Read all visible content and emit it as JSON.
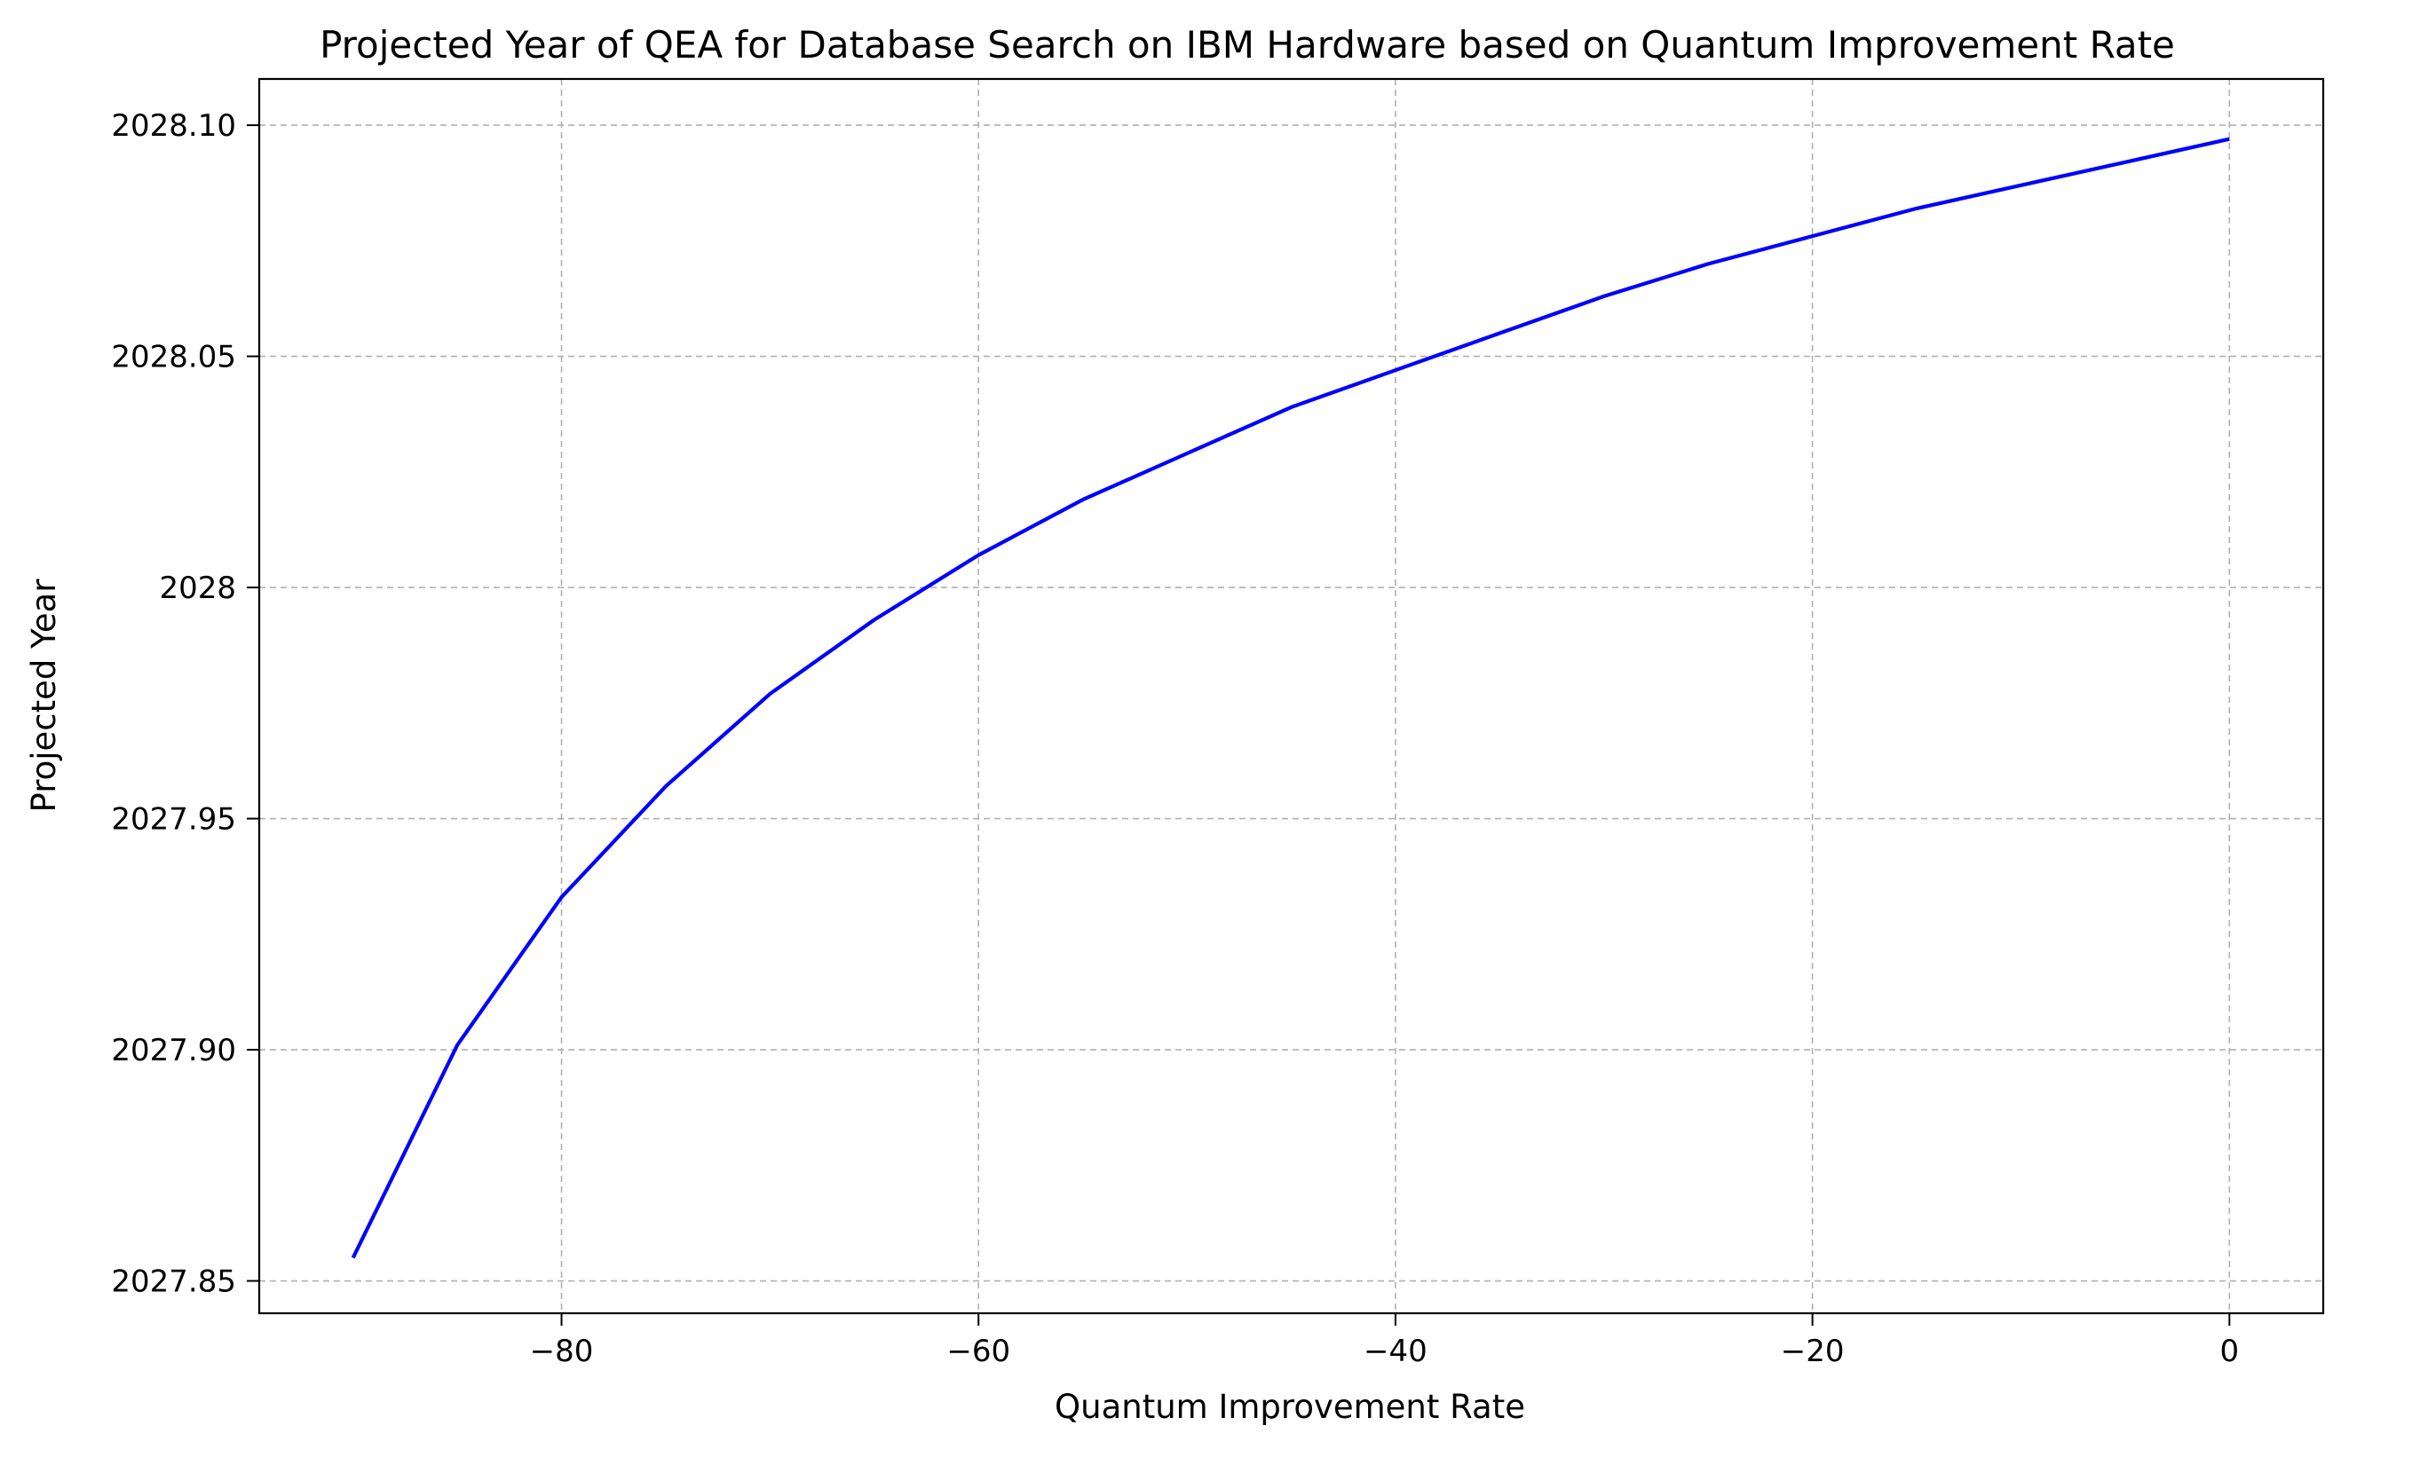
{
  "chart_data": {
    "type": "line",
    "title": "Projected Year of QEA for Database Search on IBM Hardware based on Quantum Improvement Rate",
    "xlabel": "Quantum Improvement Rate",
    "ylabel": "Projected Year",
    "xlim": [
      -94.5,
      4.5
    ],
    "ylim": [
      2027.843,
      2028.11
    ],
    "x_ticks": [
      {
        "value": -80,
        "label": "−80"
      },
      {
        "value": -60,
        "label": "−60"
      },
      {
        "value": -40,
        "label": "−40"
      },
      {
        "value": -20,
        "label": "−20"
      },
      {
        "value": 0,
        "label": "0"
      }
    ],
    "y_ticks": [
      {
        "value": 2027.85,
        "label": "2027.85"
      },
      {
        "value": 2027.9,
        "label": "2027.90"
      },
      {
        "value": 2027.95,
        "label": "2027.95"
      },
      {
        "value": 2028.0,
        "label": "2028"
      },
      {
        "value": 2028.05,
        "label": "2028.05"
      },
      {
        "value": 2028.1,
        "label": "2028.10"
      }
    ],
    "grid": true,
    "series": [
      {
        "color": "#0000ff",
        "x": [
          -90,
          -85,
          -80,
          -75,
          -70,
          -65,
          -60,
          -55,
          -50,
          -45,
          -40,
          -35,
          -30,
          -25,
          -20,
          -15,
          -10,
          -5,
          0
        ],
        "y": [
          2027.855,
          2027.901,
          2027.933,
          2027.957,
          2027.977,
          2027.993,
          2028.007,
          2028.019,
          2028.029,
          2028.039,
          2028.047,
          2028.055,
          2028.063,
          2028.07,
          2028.076,
          2028.082,
          2028.087,
          2028.092,
          2028.097
        ]
      }
    ]
  }
}
